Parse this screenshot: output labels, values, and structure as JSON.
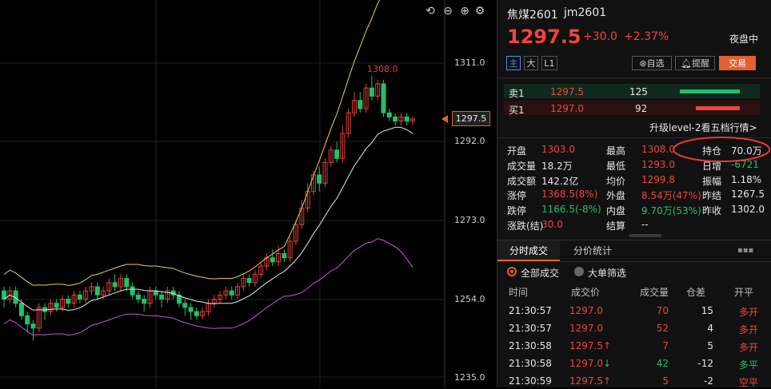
{
  "chart": {
    "axis_labels": [
      "1311.0",
      "1292.0",
      "1273.0",
      "1254.0",
      "1235.0"
    ],
    "current_price_tag": "1297.5",
    "peak_label": "1308.0",
    "toolbar_icons": [
      "undo-icon",
      "zoom-out-icon",
      "zoom-in-icon",
      "settings-icon"
    ]
  },
  "header": {
    "name": "焦煤2601",
    "code": "jm2601",
    "price": "1297.5",
    "change": "+30.0",
    "change_pct": "+2.37%",
    "session": "夜盘中",
    "tabs": [
      "主",
      "大",
      "L1"
    ],
    "watch_button": "自选",
    "alert_button": "提醒",
    "trade_button": "交易"
  },
  "orderbook": {
    "sell": {
      "label": "卖1",
      "price": "1297.5",
      "vol": "125",
      "bar_pct": 0.75
    },
    "buy": {
      "label": "买1",
      "price": "1297.0",
      "vol": "92",
      "bar_pct": 0.55
    },
    "upgrade_link": "升级level-2看五档行情>"
  },
  "stats": [
    [
      {
        "k": "开盘",
        "v": "1303.0",
        "c": "red"
      },
      {
        "k": "最高",
        "v": "1308.0",
        "c": "red"
      },
      {
        "k": "持仓",
        "v": "70.0万",
        "c": "white"
      }
    ],
    [
      {
        "k": "成交量",
        "v": "18.2万",
        "c": "white"
      },
      {
        "k": "最低",
        "v": "1293.0",
        "c": "red"
      },
      {
        "k": "日增",
        "v": "-6721",
        "c": "green"
      }
    ],
    [
      {
        "k": "成交额",
        "v": "142.2亿",
        "c": "white"
      },
      {
        "k": "均价",
        "v": "1299.8",
        "c": "red"
      },
      {
        "k": "振幅",
        "v": "1.18%",
        "c": "white"
      }
    ],
    [
      {
        "k": "涨停",
        "v": "1368.5(8%)",
        "c": "red"
      },
      {
        "k": "外盘",
        "v": "8.54万(47%)",
        "c": "red"
      },
      {
        "k": "昨结",
        "v": "1267.5",
        "c": "white"
      }
    ],
    [
      {
        "k": "跌停",
        "v": "1166.5(-8%)",
        "c": "green"
      },
      {
        "k": "内盘",
        "v": "9.70万(53%)",
        "c": "green"
      },
      {
        "k": "昨收",
        "v": "1302.0",
        "c": "white"
      }
    ],
    [
      {
        "k": "涨跌(结)",
        "v": "30.0",
        "c": "red"
      },
      {
        "k": "结算",
        "v": "--",
        "c": "white"
      },
      {
        "k": "",
        "v": "",
        "c": "white"
      }
    ]
  ],
  "tabs2": [
    "分时成交",
    "分价统计"
  ],
  "filters": {
    "all": "全部成交",
    "big": "大单筛选"
  },
  "trades": {
    "headers": [
      "时间",
      "成交价",
      "成交量",
      "仓差",
      "开平"
    ],
    "rows": [
      {
        "time": "21:30:57",
        "price": "1297.0",
        "arrow": "",
        "vol": "70",
        "vc": "red",
        "diff": "15",
        "type": "多开",
        "tc": "red"
      },
      {
        "time": "21:30:57",
        "price": "1297.0",
        "arrow": "",
        "vol": "52",
        "vc": "red",
        "diff": "4",
        "type": "多开",
        "tc": "red"
      },
      {
        "time": "21:30:58",
        "price": "1297.5",
        "arrow": "↑",
        "vol": "7",
        "vc": "red",
        "diff": "5",
        "type": "多开",
        "tc": "red"
      },
      {
        "time": "21:30:58",
        "price": "1297.0",
        "arrow": "↓",
        "vol": "42",
        "vc": "green",
        "diff": "-12",
        "type": "多平",
        "tc": "green"
      },
      {
        "time": "21:30:59",
        "price": "1297.5",
        "arrow": "↑",
        "vol": "5",
        "vc": "red",
        "diff": "-2",
        "type": "空平",
        "tc": "red"
      }
    ]
  }
}
